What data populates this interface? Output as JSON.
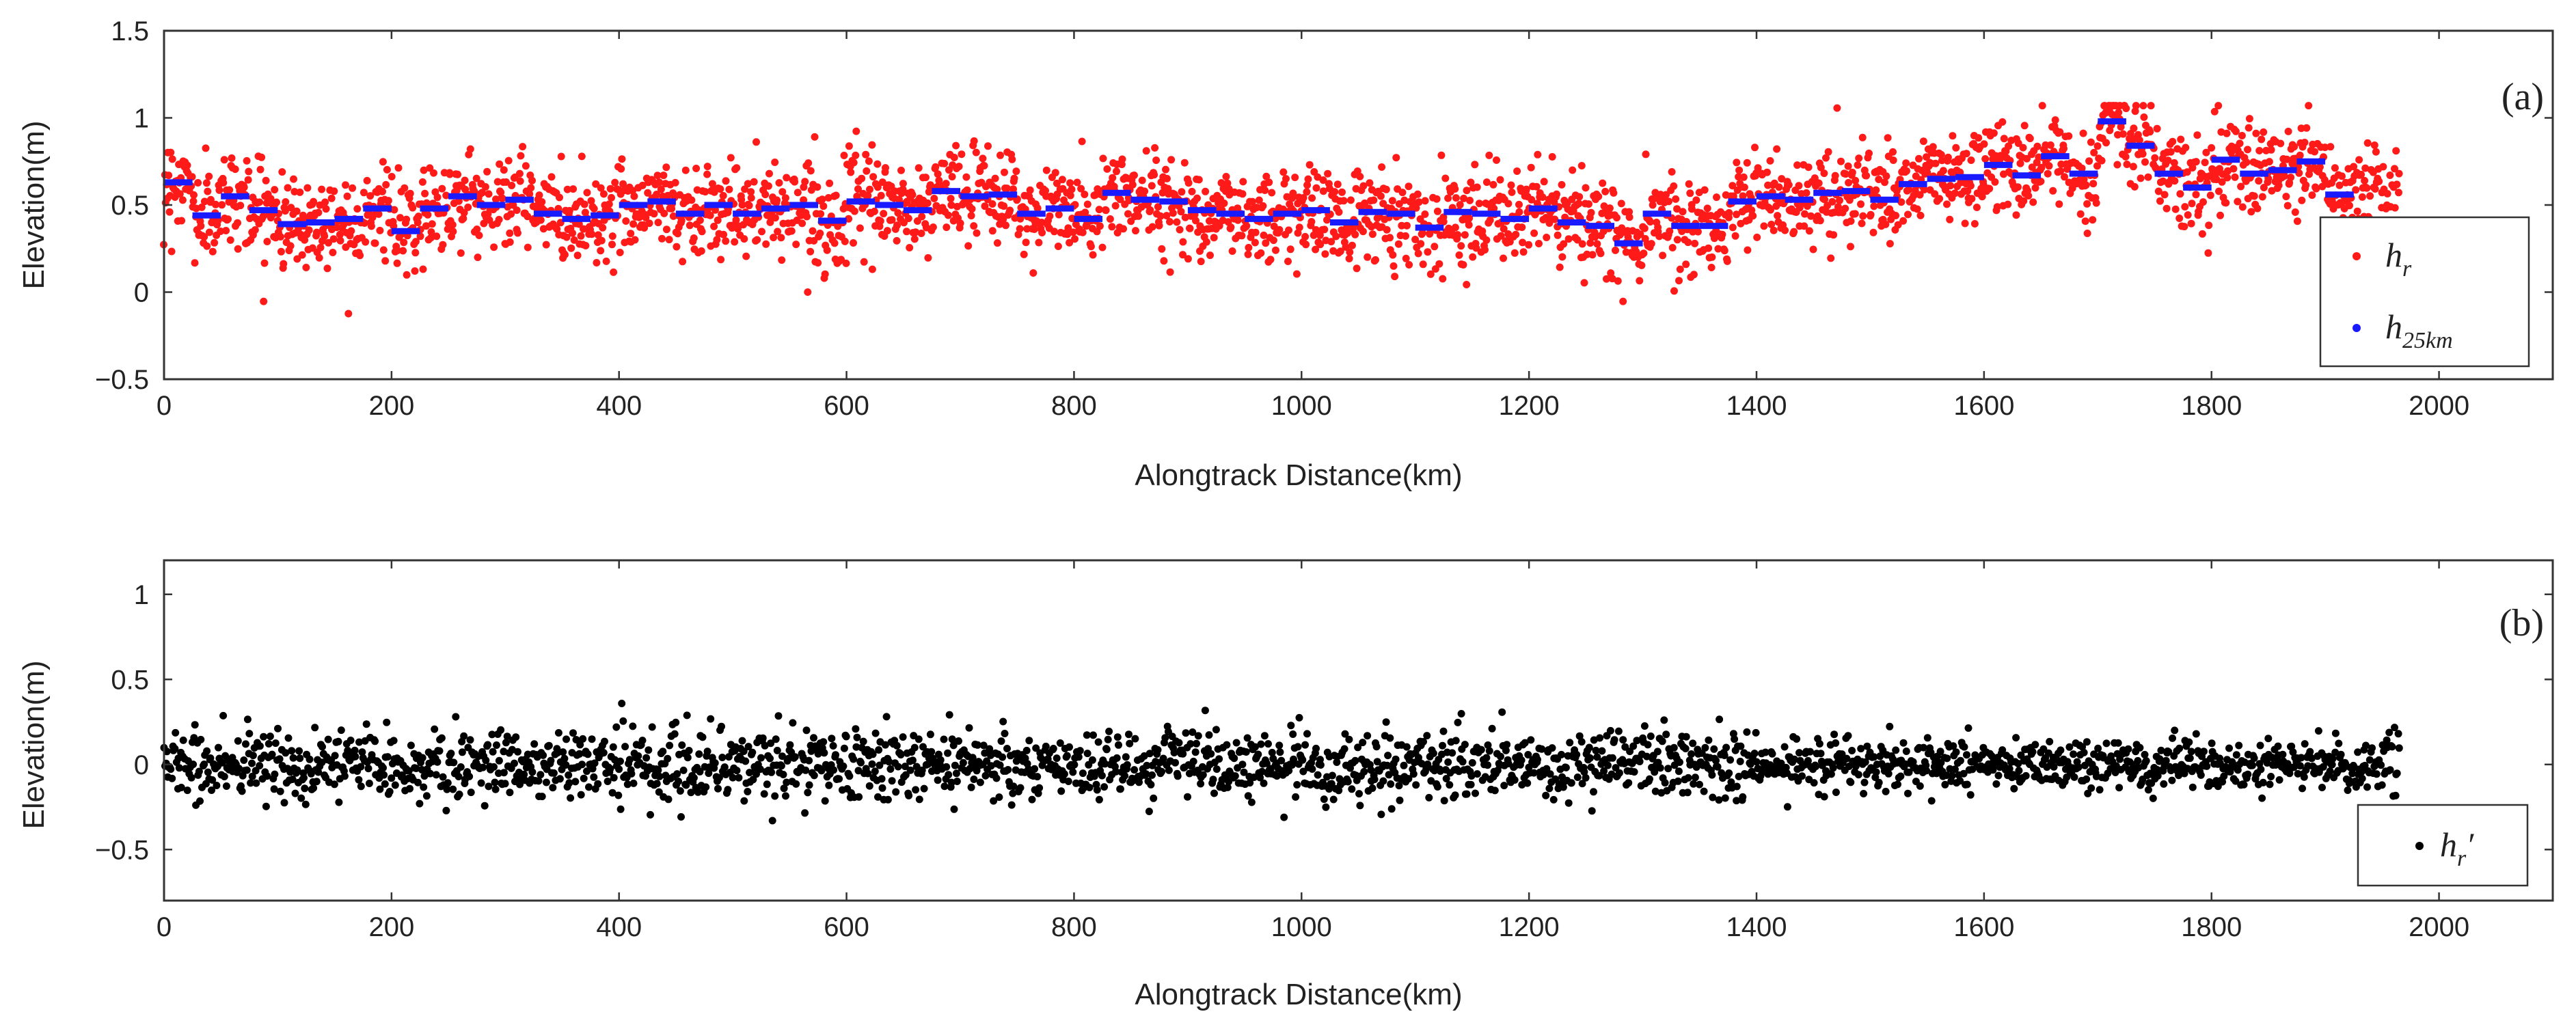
{
  "chart_data": [
    {
      "type": "scatter",
      "panel_label": "(a)",
      "xlabel": "Alongtrack Distance(km)",
      "ylabel": "Elevation(m)",
      "xlim": [
        0,
        2100
      ],
      "ylim": [
        -0.5,
        1.5
      ],
      "xticks": [
        "0",
        "200",
        "400",
        "600",
        "800",
        "1000",
        "1200",
        "1400",
        "1600",
        "1800",
        "2000"
      ],
      "yticks": [
        "1.5",
        "1",
        "0.5",
        "0",
        "−0.5"
      ],
      "legend_position": "lower-right",
      "series": [
        {
          "name": "h_r",
          "legend_main": "h",
          "legend_sub": "r",
          "color": "#ff1a1a",
          "marker": "dot",
          "x_range": [
            0,
            1965
          ],
          "noise_amplitude": 0.18,
          "note": "dense noisy points scattered around the 25 km segment means"
        },
        {
          "name": "h_25km",
          "legend_main": "h",
          "legend_sub": "25km",
          "color": "#1a1aff",
          "marker": "dash",
          "segment_length_km": 25,
          "values": [
            0.63,
            0.44,
            0.55,
            0.47,
            0.39,
            0.4,
            0.42,
            0.48,
            0.35,
            0.48,
            0.55,
            0.5,
            0.53,
            0.45,
            0.42,
            0.44,
            0.5,
            0.52,
            0.45,
            0.5,
            0.45,
            0.48,
            0.5,
            0.41,
            0.52,
            0.5,
            0.47,
            0.58,
            0.55,
            0.56,
            0.45,
            0.48,
            0.42,
            0.57,
            0.53,
            0.52,
            0.47,
            0.45,
            0.42,
            0.45,
            0.47,
            0.4,
            0.46,
            0.45,
            0.37,
            0.46,
            0.45,
            0.42,
            0.48,
            0.4,
            0.38,
            0.28,
            0.45,
            0.38,
            0.38,
            0.52,
            0.55,
            0.53,
            0.57,
            0.58,
            0.53,
            0.62,
            0.65,
            0.66,
            0.73,
            0.67,
            0.78,
            0.68,
            0.98,
            0.84,
            0.68,
            0.6,
            0.76,
            0.68,
            0.7,
            0.75,
            0.56
          ]
        }
      ]
    },
    {
      "type": "scatter",
      "panel_label": "(b)",
      "xlabel": "Alongtrack Distance(km)",
      "ylabel": "Elevation(m)",
      "xlim": [
        0,
        2100
      ],
      "ylim": [
        -0.8,
        1.2
      ],
      "xticks": [
        "0",
        "200",
        "400",
        "600",
        "800",
        "1000",
        "1200",
        "1400",
        "1600",
        "1800",
        "2000"
      ],
      "yticks": [
        "1",
        "0.5",
        "0",
        "−0.5"
      ],
      "legend_position": "lower-right",
      "series": [
        {
          "name": "h_r'",
          "legend_main": "h",
          "legend_sub": "r",
          "legend_suffix": "′",
          "color": "#000000",
          "marker": "dot",
          "x_range": [
            0,
            1965
          ],
          "center": 0.0,
          "noise_amplitude": 0.17,
          "note": "residual elevation after removing 25 km means, scattered around zero"
        }
      ]
    }
  ]
}
